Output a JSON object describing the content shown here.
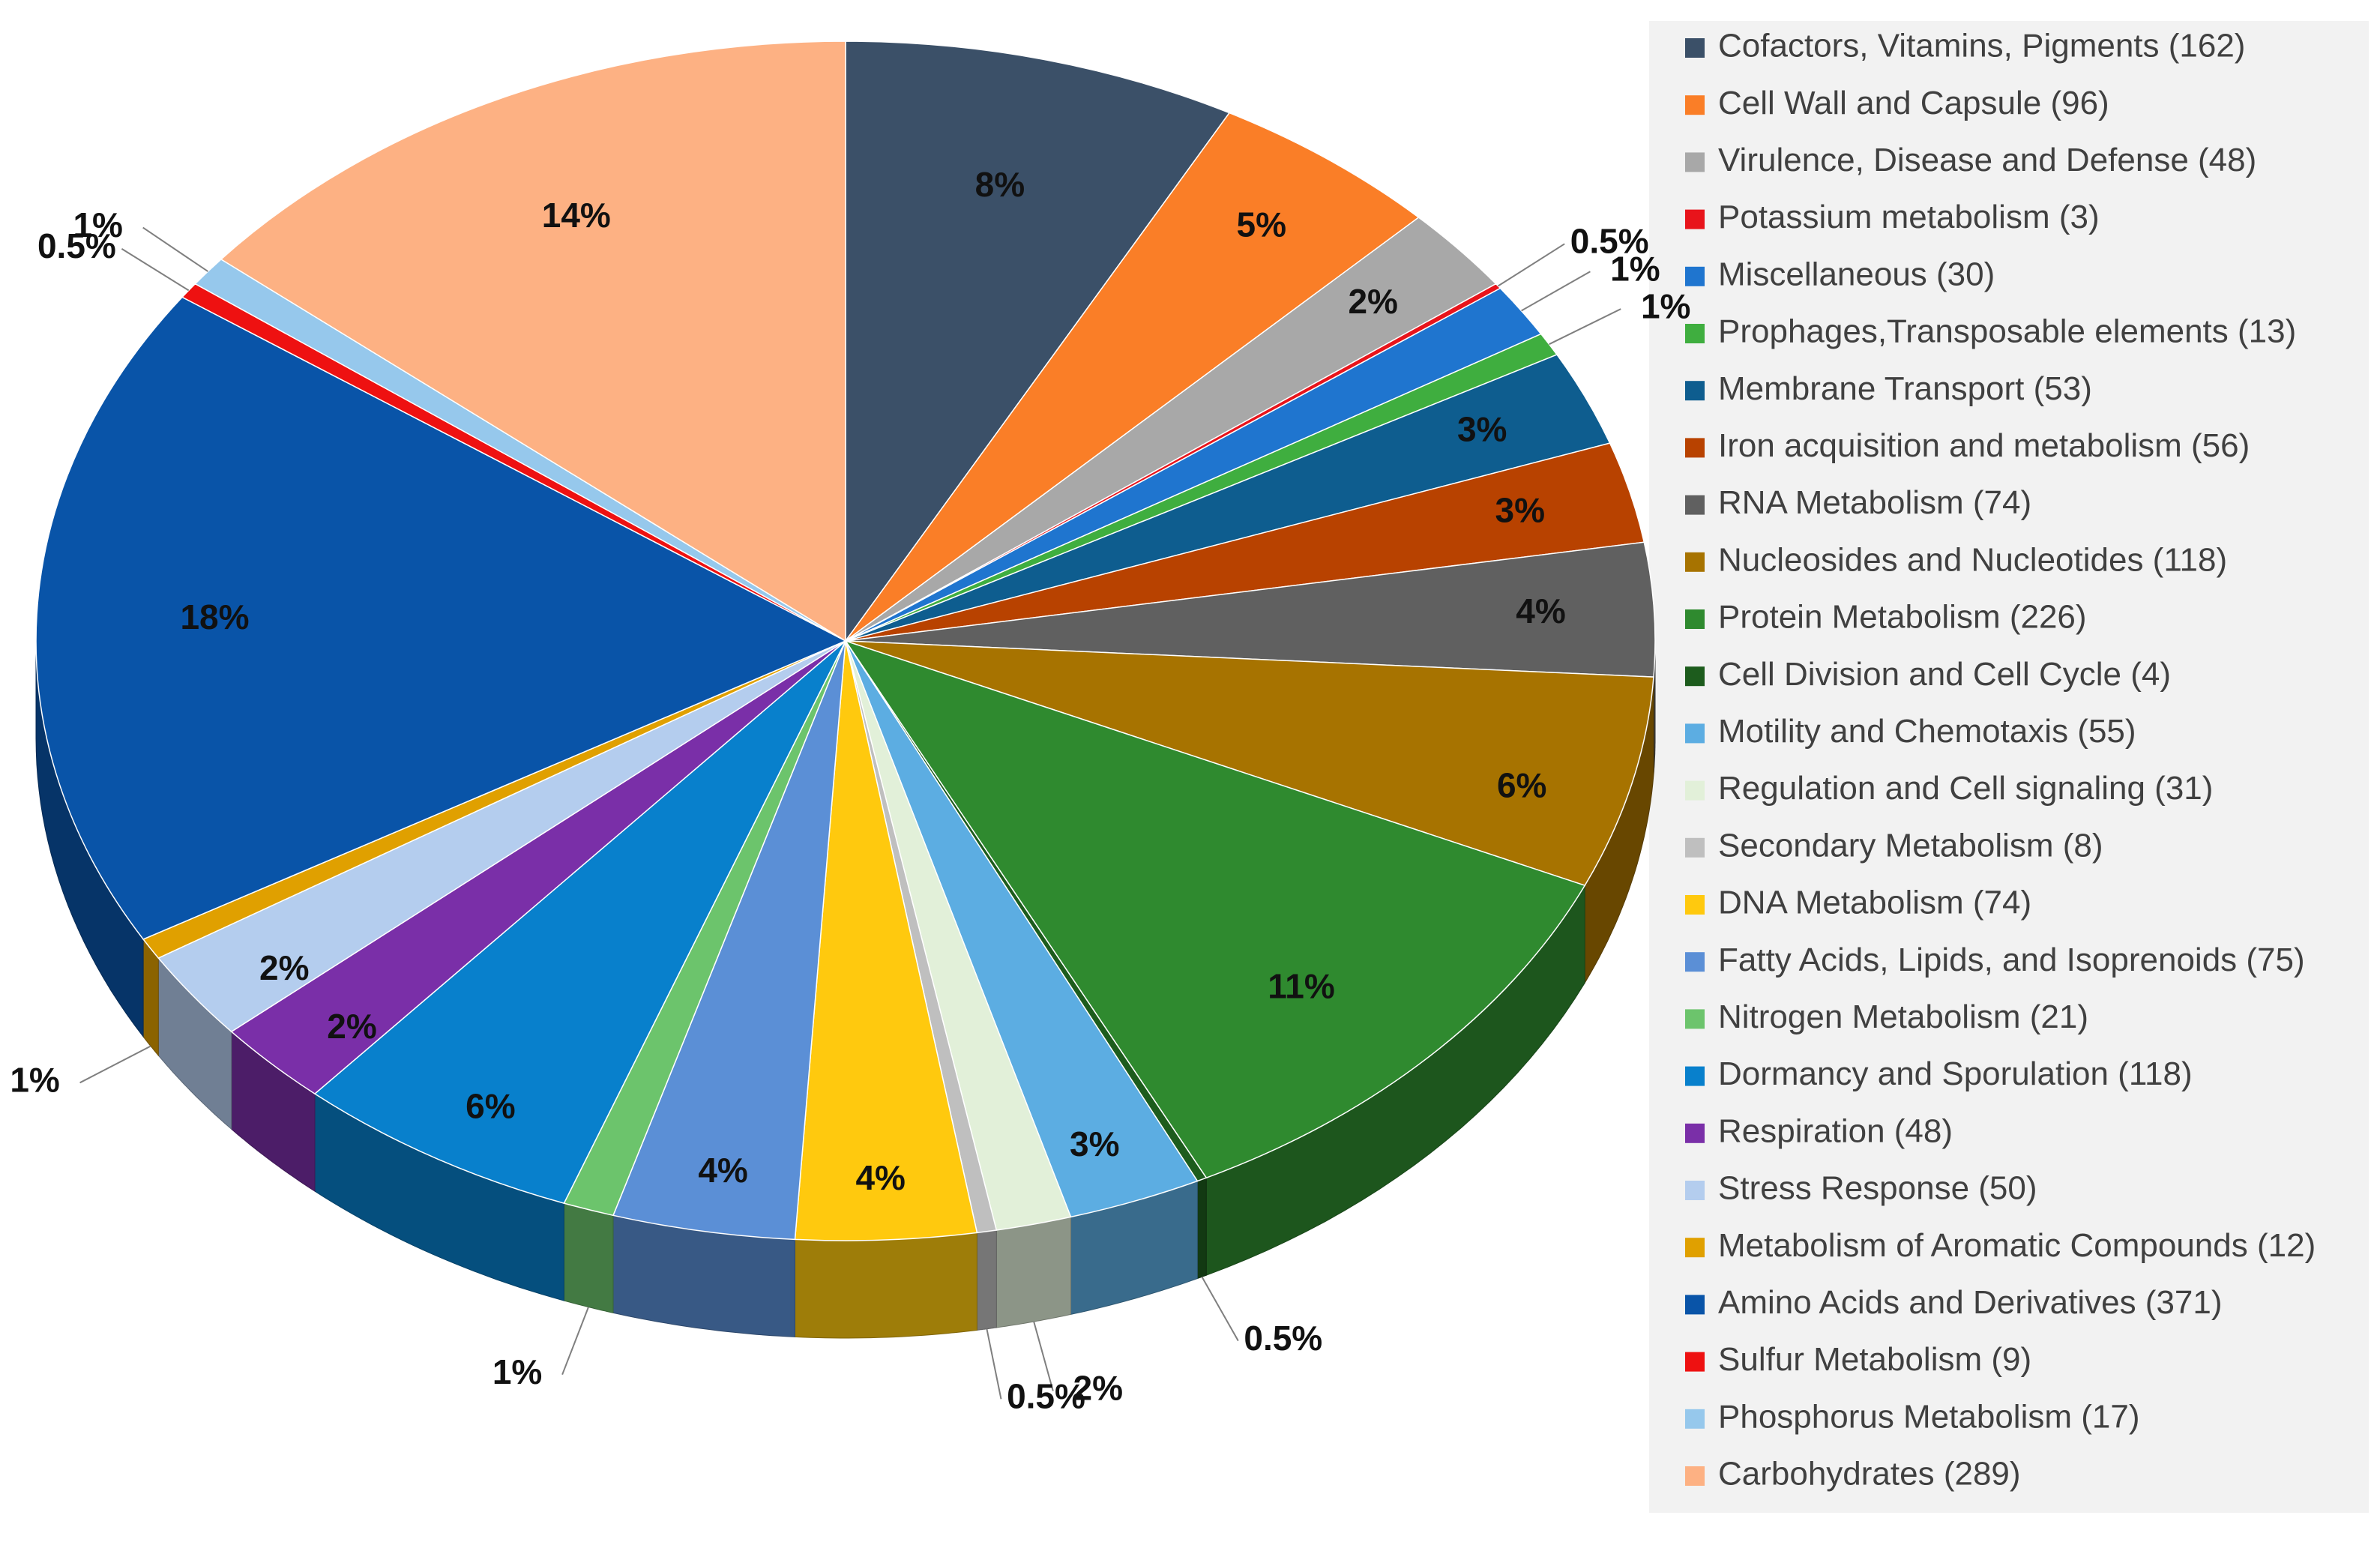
{
  "chart_data": {
    "type": "pie",
    "style": "3d-tilted",
    "title": "",
    "legend_position": "right",
    "series": [
      {
        "name": "Cofactors, Vitamins, Pigments",
        "count": 162,
        "percent_label": "8%",
        "color": "#3b5068"
      },
      {
        "name": "Cell Wall and Capsule",
        "count": 96,
        "percent_label": "5%",
        "color": "#fa7e27"
      },
      {
        "name": "Virulence, Disease and Defense",
        "count": 48,
        "percent_label": "2%",
        "color": "#a8a8a8"
      },
      {
        "name": "Potassium metabolism",
        "count": 3,
        "percent_label": "0.5%",
        "color": "#e8141b"
      },
      {
        "name": "Miscellaneous",
        "count": 30,
        "percent_label": "1%",
        "color": "#1f75cf"
      },
      {
        "name": "Prophages,Transposable elements",
        "count": 13,
        "percent_label": "1%",
        "color": "#3fae3f"
      },
      {
        "name": "Membrane Transport",
        "count": 53,
        "percent_label": "3%",
        "color": "#0e5d8f"
      },
      {
        "name": "Iron acquisition and metabolism",
        "count": 56,
        "percent_label": "3%",
        "color": "#b84200"
      },
      {
        "name": "RNA Metabolism",
        "count": 74,
        "percent_label": "4%",
        "color": "#606060"
      },
      {
        "name": "Nucleosides and Nucleotides",
        "count": 118,
        "percent_label": "6%",
        "color": "#a77300"
      },
      {
        "name": "Protein Metabolism",
        "count": 226,
        "percent_label": "11%",
        "color": "#2f8a2f"
      },
      {
        "name": "Cell Division and Cell Cycle",
        "count": 4,
        "percent_label": "0.5%",
        "color": "#1d5c1d"
      },
      {
        "name": "Motility and Chemotaxis",
        "count": 55,
        "percent_label": "3%",
        "color": "#5cade2"
      },
      {
        "name": "Regulation and Cell signaling",
        "count": 31,
        "percent_label": "2%",
        "color": "#e2f0d9"
      },
      {
        "name": "Secondary Metabolism",
        "count": 8,
        "percent_label": "0.5%",
        "color": "#bfbfbf"
      },
      {
        "name": "DNA Metabolism",
        "count": 74,
        "percent_label": "4%",
        "color": "#ffc90e"
      },
      {
        "name": "Fatty Acids, Lipids, and Isoprenoids",
        "count": 75,
        "percent_label": "4%",
        "color": "#5b8fd6"
      },
      {
        "name": "Nitrogen Metabolism",
        "count": 21,
        "percent_label": "1%",
        "color": "#6cc46c"
      },
      {
        "name": "Dormancy and Sporulation",
        "count": 118,
        "percent_label": "6%",
        "color": "#0880cc"
      },
      {
        "name": "Respiration",
        "count": 48,
        "percent_label": "2%",
        "color": "#7a2fa8"
      },
      {
        "name": "Stress Response",
        "count": 50,
        "percent_label": "2%",
        "color": "#b4cdee"
      },
      {
        "name": "Metabolism of Aromatic Compounds",
        "count": 12,
        "percent_label": "1%",
        "color": "#e0a000"
      },
      {
        "name": "Amino Acids and Derivatives",
        "count": 371,
        "percent_label": "18%",
        "color": "#0954a8"
      },
      {
        "name": "Sulfur Metabolism",
        "count": 9,
        "percent_label": "0.5%",
        "color": "#ee1111"
      },
      {
        "name": "Phosphorus Metabolism",
        "count": 17,
        "percent_label": "1%",
        "color": "#96c8ec"
      },
      {
        "name": "Carbohydrates",
        "count": 289,
        "percent_label": "14%",
        "color": "#fdb183"
      }
    ]
  }
}
